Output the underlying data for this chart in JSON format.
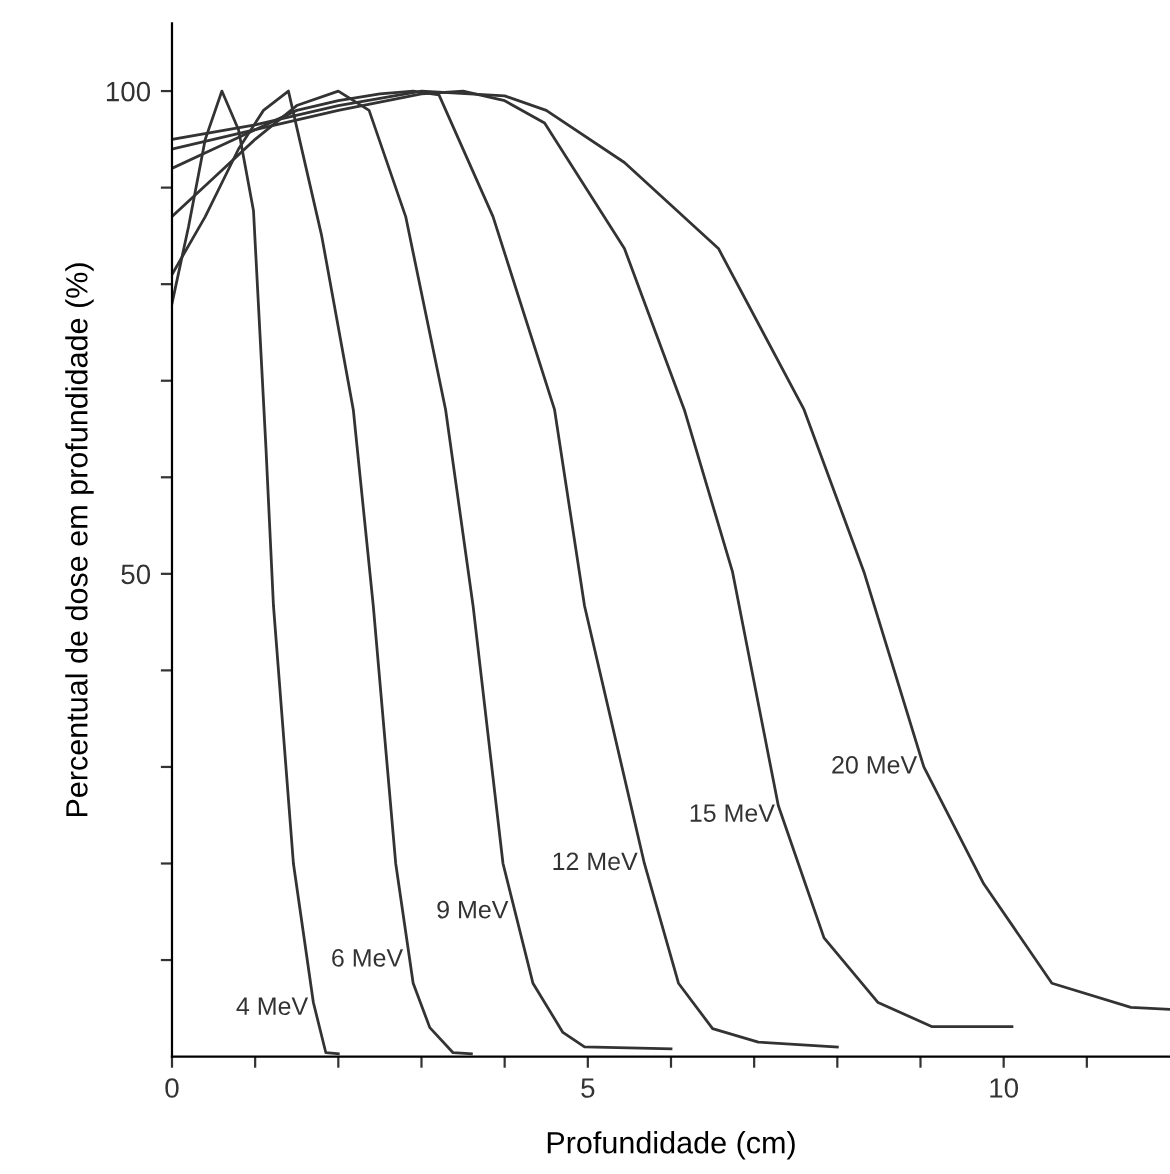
{
  "chart_data": {
    "type": "line",
    "xlabel": "Profundidade (cm)",
    "ylabel": "Percentual de dose em profundidade (%)",
    "xlim": [
      0,
      12
    ],
    "ylim": [
      0,
      107
    ],
    "xticks": [
      0,
      {
        "value": 1,
        "label": null
      },
      {
        "value": 2,
        "label": null
      },
      {
        "value": 3,
        "label": null
      },
      {
        "value": 4,
        "label": null
      },
      5,
      {
        "value": 6,
        "label": null
      },
      {
        "value": 7,
        "label": null
      },
      {
        "value": 8,
        "label": null
      },
      {
        "value": 9,
        "label": null
      },
      10,
      {
        "value": 11,
        "label": null
      }
    ],
    "yticks": [
      {
        "value": 10,
        "label": null
      },
      {
        "value": 20,
        "label": null
      },
      {
        "value": 30,
        "label": null
      },
      {
        "value": 40,
        "label": null
      },
      50,
      {
        "value": 60,
        "label": null
      },
      {
        "value": 70,
        "label": null
      },
      {
        "value": 80,
        "label": null
      },
      {
        "value": 90,
        "label": null
      },
      100
    ],
    "grid": false,
    "legend": false,
    "marker": "none",
    "line_style": "solid",
    "series": [
      {
        "name": "4 MeV",
        "color": "#333333",
        "x": [
          0,
          0.2,
          0.4,
          0.6,
          0.8,
          0.98,
          1.13,
          1.22,
          1.46,
          1.7,
          1.85,
          2.0
        ],
        "values": [
          78,
          86,
          95,
          100,
          96,
          87.6,
          63,
          46.7,
          20,
          5.6,
          0.4,
          0.3
        ]
      },
      {
        "name": "6 MeV",
        "color": "#333333",
        "x": [
          0,
          0.4,
          0.8,
          1.1,
          1.4,
          1.8,
          2.18,
          2.42,
          2.69,
          2.9,
          3.1,
          3.38,
          3.6
        ],
        "values": [
          81,
          87,
          94,
          98,
          100,
          85,
          67,
          46.7,
          20,
          7.6,
          3,
          0.4,
          0.3
        ]
      },
      {
        "name": "9 MeV",
        "color": "#333333",
        "x": [
          0,
          0.5,
          1,
          1.5,
          2.0,
          2.37,
          2.81,
          3.29,
          3.62,
          3.98,
          4.34,
          4.7,
          4.96,
          6.0
        ],
        "values": [
          87,
          91,
          95,
          98.5,
          100,
          98,
          87,
          67,
          46.7,
          20,
          7.6,
          2.5,
          1,
          0.8
        ]
      },
      {
        "name": "12 MeV",
        "color": "#333333",
        "x": [
          0,
          0.5,
          1,
          1.5,
          2,
          2.5,
          2.9,
          3.21,
          3.86,
          4.6,
          4.96,
          5.68,
          6.09,
          6.5,
          7.05,
          8.0
        ],
        "values": [
          92,
          94,
          96,
          98,
          99,
          99.7,
          100,
          99.6,
          87,
          67,
          46.7,
          20,
          7.6,
          2.9,
          1.5,
          1
        ]
      },
      {
        "name": "15 MeV",
        "color": "#333333",
        "x": [
          0,
          0.5,
          1,
          2,
          3,
          3.5,
          4.0,
          4.48,
          5.44,
          6.16,
          6.74,
          7.29,
          7.84,
          8.49,
          9.14,
          10.1
        ],
        "values": [
          94,
          95,
          96,
          98,
          99.7,
          100,
          99,
          96.7,
          83.7,
          67,
          50.2,
          26,
          12.3,
          5.6,
          3.1,
          3.1
        ]
      },
      {
        "name": "20 MeV",
        "color": "#333333",
        "x": [
          0,
          1,
          2,
          3,
          4,
          4.5,
          5.44,
          6.57,
          7.6,
          8.32,
          9.04,
          9.76,
          10.58,
          11.53,
          12
        ],
        "values": [
          95,
          96.5,
          98.5,
          100,
          99.5,
          98,
          92.6,
          83.7,
          67,
          50.2,
          30,
          17.9,
          7.6,
          5.1,
          4.9
        ]
      }
    ]
  }
}
